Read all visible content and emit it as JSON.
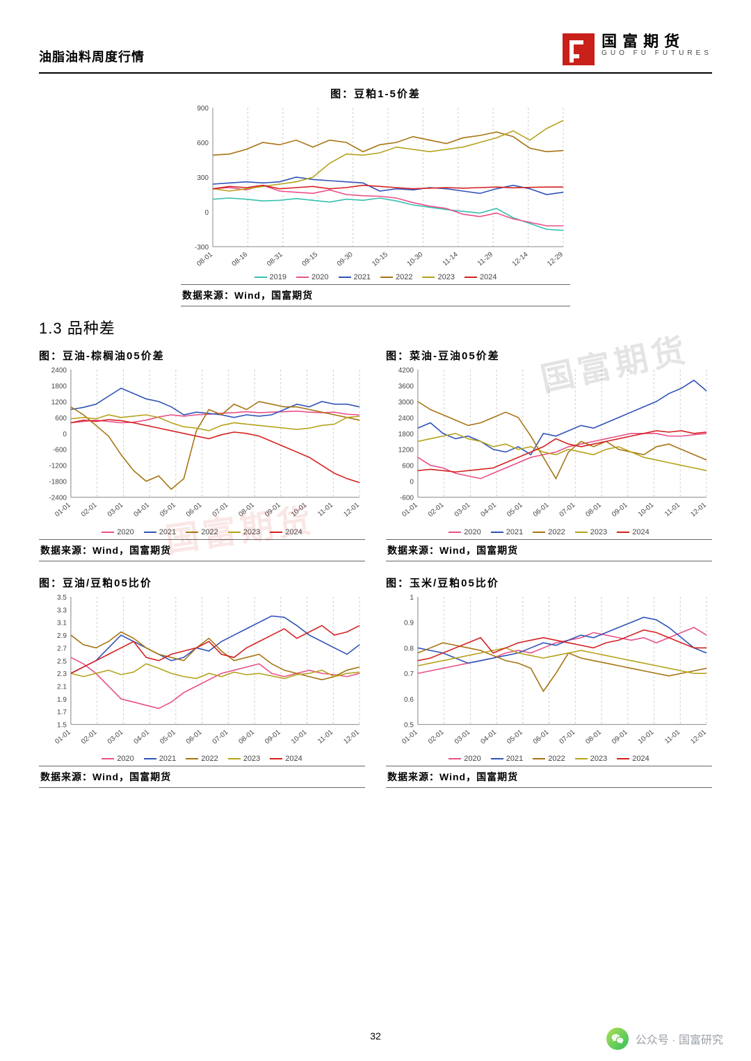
{
  "header": {
    "doc_title": "油脂油料周度行情",
    "logo_cn": "国富期货",
    "logo_en": "GUO FU FUTURES"
  },
  "page_number": "32",
  "data_source_label": "数据来源：Wind，国富期货",
  "section_1_3_title": "1.3 品种差",
  "footer": {
    "label": "公众号 · 国富研究"
  },
  "legend_years_6": [
    "2019",
    "2020",
    "2021",
    "2022",
    "2023",
    "2024"
  ],
  "legend_years_5": [
    "2020",
    "2021",
    "2022",
    "2023",
    "2024"
  ],
  "series_colors_6": {
    "2019": "#35c0b0",
    "2020": "#e94f88",
    "2021": "#2f53b7",
    "2022": "#a67412",
    "2023": "#b5a21a",
    "2024": "#d42020"
  },
  "series_colors_5": {
    "2020": "#e94f88",
    "2021": "#2f53b7",
    "2022": "#a67412",
    "2023": "#b5a21a",
    "2024": "#d42020"
  },
  "grid_color": "#cccccc",
  "axis_text_color": "#444444",
  "chart_top": {
    "type": "line",
    "title": "图：豆粕1-5价差",
    "yticks": [
      -300,
      0,
      300,
      600,
      900
    ],
    "xticks": [
      "08-01",
      "08-16",
      "08-31",
      "09-15",
      "09-30",
      "10-15",
      "10-30",
      "11-14",
      "11-29",
      "12-14",
      "12-29"
    ],
    "series": {
      "2019": [
        110,
        120,
        110,
        95,
        100,
        115,
        100,
        85,
        110,
        100,
        120,
        95,
        60,
        40,
        20,
        5,
        -10,
        30,
        -50,
        -100,
        -150,
        -160
      ],
      "2020": [
        200,
        210,
        190,
        230,
        180,
        170,
        160,
        190,
        150,
        140,
        135,
        120,
        80,
        50,
        30,
        -20,
        -40,
        -10,
        -60,
        -90,
        -120,
        -120
      ],
      "2021": [
        240,
        250,
        260,
        250,
        260,
        300,
        280,
        270,
        260,
        250,
        180,
        200,
        190,
        210,
        200,
        180,
        160,
        200,
        230,
        200,
        150,
        170
      ],
      "2022": [
        490,
        500,
        540,
        600,
        580,
        620,
        560,
        620,
        600,
        520,
        580,
        600,
        650,
        620,
        590,
        640,
        660,
        690,
        650,
        550,
        520,
        530
      ],
      "2023": [
        200,
        180,
        200,
        220,
        240,
        260,
        300,
        420,
        500,
        490,
        510,
        560,
        540,
        520,
        540,
        560,
        600,
        640,
        700,
        620,
        720,
        790
      ],
      "2024": [
        200,
        220,
        210,
        230,
        200,
        210,
        220,
        200,
        210,
        230,
        220,
        210,
        200,
        205,
        210,
        205,
        210,
        215,
        208,
        212,
        215,
        215
      ]
    }
  },
  "charts_bottom": [
    {
      "id": "soy_palm",
      "title": "图：豆油-棕榈油05价差",
      "yticks": [
        -2400,
        -1800,
        -1200,
        -600,
        0,
        600,
        1200,
        1800,
        2400
      ],
      "xticks": [
        "01-01",
        "02-01",
        "03-01",
        "04-01",
        "05-01",
        "06-01",
        "07-01",
        "08-01",
        "09-01",
        "10-01",
        "11-01",
        "12-01"
      ],
      "series": {
        "2020": [
          400,
          450,
          500,
          450,
          400,
          420,
          500,
          620,
          700,
          650,
          700,
          720,
          760,
          780,
          820,
          780,
          800,
          820,
          840,
          800,
          780,
          800,
          720,
          700
        ],
        "2021": [
          900,
          980,
          1100,
          1400,
          1700,
          1500,
          1300,
          1200,
          1000,
          700,
          800,
          750,
          700,
          600,
          700,
          650,
          700,
          900,
          1100,
          1000,
          1200,
          1100,
          1100,
          1000
        ],
        "2022": [
          1000,
          700,
          300,
          -100,
          -800,
          -1400,
          -1800,
          -1600,
          -2100,
          -1700,
          100,
          900,
          700,
          1100,
          900,
          1200,
          1100,
          1000,
          1000,
          900,
          800,
          700,
          600,
          500
        ],
        "2023": [
          550,
          600,
          550,
          700,
          600,
          650,
          700,
          600,
          400,
          250,
          200,
          100,
          300,
          400,
          350,
          300,
          250,
          200,
          150,
          200,
          300,
          350,
          600,
          650
        ],
        "2024": [
          400,
          500,
          450,
          520,
          480,
          400,
          300,
          200,
          100,
          0,
          -100,
          -200,
          -50,
          50,
          0,
          -100,
          -300,
          -500,
          -700,
          -900,
          -1200,
          -1500,
          -1700,
          -1850
        ]
      }
    },
    {
      "id": "rape_soy",
      "title": "图：菜油-豆油05价差",
      "yticks": [
        -600,
        0,
        600,
        1200,
        1800,
        2400,
        3000,
        3600,
        4200
      ],
      "xticks": [
        "01-01",
        "02-01",
        "03-01",
        "04-01",
        "05-01",
        "06-01",
        "07-01",
        "08-01",
        "09-01",
        "10-01",
        "11-01",
        "12-01"
      ],
      "series": {
        "2020": [
          900,
          600,
          500,
          300,
          200,
          100,
          300,
          500,
          700,
          900,
          1000,
          1100,
          1300,
          1400,
          1500,
          1600,
          1700,
          1800,
          1800,
          1800,
          1700,
          1700,
          1750,
          1800
        ],
        "2021": [
          2000,
          2200,
          1800,
          1600,
          1700,
          1500,
          1200,
          1100,
          1300,
          1000,
          1800,
          1700,
          1900,
          2100,
          2000,
          2200,
          2400,
          2600,
          2800,
          3000,
          3300,
          3500,
          3800,
          3400
        ],
        "2022": [
          3000,
          2700,
          2500,
          2300,
          2100,
          2200,
          2400,
          2600,
          2400,
          1700,
          900,
          100,
          1100,
          1500,
          1300,
          1500,
          1200,
          1100,
          1000,
          1300,
          1400,
          1200,
          1000,
          800
        ],
        "2023": [
          1500,
          1600,
          1700,
          1800,
          1600,
          1500,
          1300,
          1400,
          1200,
          1300,
          1100,
          1000,
          1200,
          1100,
          1000,
          1200,
          1300,
          1100,
          900,
          800,
          700,
          600,
          500,
          400
        ],
        "2024": [
          400,
          450,
          400,
          350,
          400,
          450,
          500,
          700,
          900,
          1100,
          1300,
          1600,
          1400,
          1300,
          1400,
          1500,
          1600,
          1700,
          1800,
          1900,
          1850,
          1900,
          1800,
          1850
        ]
      }
    },
    {
      "id": "soyoil_meal_ratio",
      "title": "图：豆油/豆粕05比价",
      "yticks": [
        1.5,
        1.7,
        1.9,
        2.1,
        2.3,
        2.5,
        2.7,
        2.9,
        3.1,
        3.3,
        3.5
      ],
      "xticks": [
        "01-01",
        "02-01",
        "03-01",
        "04-01",
        "05-01",
        "06-01",
        "07-01",
        "08-01",
        "09-01",
        "10-01",
        "11-01",
        "12-01"
      ],
      "series": {
        "2020": [
          2.55,
          2.45,
          2.3,
          2.1,
          1.9,
          1.85,
          1.8,
          1.75,
          1.85,
          2.0,
          2.1,
          2.2,
          2.3,
          2.35,
          2.4,
          2.45,
          2.3,
          2.25,
          2.3,
          2.35,
          2.3,
          2.28,
          2.25,
          2.3
        ],
        "2021": [
          2.3,
          2.4,
          2.5,
          2.7,
          2.9,
          2.8,
          2.7,
          2.6,
          2.5,
          2.55,
          2.7,
          2.65,
          2.8,
          2.9,
          3.0,
          3.1,
          3.2,
          3.18,
          3.05,
          2.9,
          2.8,
          2.7,
          2.6,
          2.75
        ],
        "2022": [
          2.9,
          2.75,
          2.7,
          2.8,
          2.95,
          2.85,
          2.7,
          2.6,
          2.55,
          2.5,
          2.7,
          2.85,
          2.65,
          2.5,
          2.55,
          2.6,
          2.45,
          2.35,
          2.3,
          2.25,
          2.2,
          2.25,
          2.35,
          2.4
        ],
        "2023": [
          2.3,
          2.25,
          2.3,
          2.35,
          2.28,
          2.32,
          2.45,
          2.38,
          2.3,
          2.25,
          2.22,
          2.3,
          2.25,
          2.32,
          2.28,
          2.3,
          2.26,
          2.22,
          2.28,
          2.3,
          2.35,
          2.25,
          2.3,
          2.32
        ],
        "2024": [
          2.3,
          2.4,
          2.5,
          2.6,
          2.7,
          2.8,
          2.55,
          2.5,
          2.6,
          2.65,
          2.7,
          2.8,
          2.6,
          2.55,
          2.7,
          2.8,
          2.9,
          3.0,
          2.85,
          2.95,
          3.05,
          2.9,
          2.95,
          3.05
        ]
      }
    },
    {
      "id": "corn_meal_ratio",
      "title": "图：玉米/豆粕05比价",
      "yticks": [
        0.5,
        0.6,
        0.7,
        0.8,
        0.9,
        1.0
      ],
      "xticks": [
        "01-01",
        "02-01",
        "03-01",
        "04-01",
        "05-01",
        "06-01",
        "07-01",
        "08-01",
        "09-01",
        "10-01",
        "11-01",
        "12-01"
      ],
      "series": {
        "2020": [
          0.7,
          0.71,
          0.72,
          0.73,
          0.74,
          0.75,
          0.76,
          0.78,
          0.79,
          0.78,
          0.8,
          0.82,
          0.83,
          0.84,
          0.86,
          0.85,
          0.84,
          0.83,
          0.84,
          0.82,
          0.84,
          0.86,
          0.88,
          0.85
        ],
        "2021": [
          0.8,
          0.79,
          0.78,
          0.76,
          0.74,
          0.75,
          0.76,
          0.77,
          0.78,
          0.8,
          0.82,
          0.81,
          0.83,
          0.85,
          0.84,
          0.86,
          0.88,
          0.9,
          0.92,
          0.91,
          0.88,
          0.84,
          0.8,
          0.78
        ],
        "2022": [
          0.78,
          0.8,
          0.82,
          0.81,
          0.8,
          0.79,
          0.77,
          0.75,
          0.74,
          0.72,
          0.63,
          0.7,
          0.78,
          0.76,
          0.75,
          0.74,
          0.73,
          0.72,
          0.71,
          0.7,
          0.69,
          0.7,
          0.71,
          0.72
        ],
        "2023": [
          0.73,
          0.74,
          0.75,
          0.76,
          0.77,
          0.78,
          0.79,
          0.8,
          0.78,
          0.77,
          0.76,
          0.77,
          0.78,
          0.79,
          0.78,
          0.77,
          0.76,
          0.75,
          0.74,
          0.73,
          0.72,
          0.71,
          0.7,
          0.7
        ],
        "2024": [
          0.75,
          0.76,
          0.78,
          0.8,
          0.82,
          0.84,
          0.78,
          0.8,
          0.82,
          0.83,
          0.84,
          0.83,
          0.82,
          0.81,
          0.8,
          0.82,
          0.83,
          0.85,
          0.87,
          0.86,
          0.84,
          0.82,
          0.8,
          0.8
        ]
      }
    }
  ]
}
